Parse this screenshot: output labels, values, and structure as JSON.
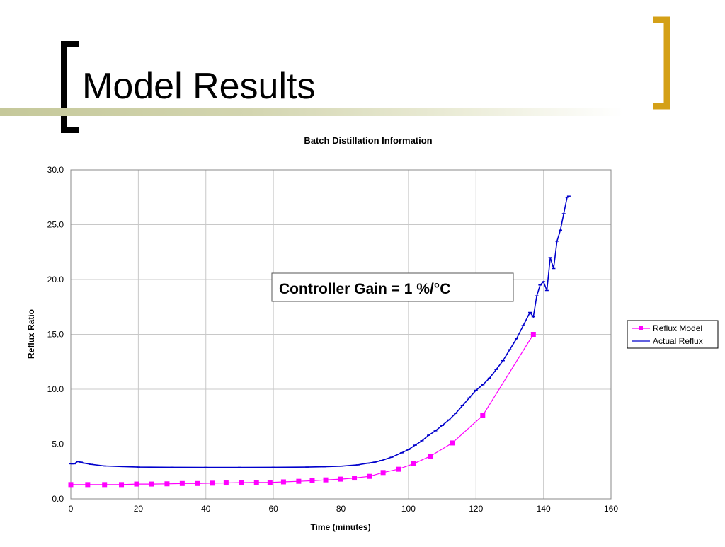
{
  "slide": {
    "title": "Model Results",
    "colors": {
      "bracket_left": "#000000",
      "bracket_right": "#d4a017",
      "rule": "#c5c89a"
    }
  },
  "chart_data": {
    "type": "line",
    "title": "Batch Distillation Information",
    "xlabel": "Time (minutes)",
    "ylabel": "Reflux Ratio",
    "xlim": [
      0,
      160
    ],
    "ylim": [
      0,
      30
    ],
    "xticks": [
      0,
      20,
      40,
      60,
      80,
      100,
      120,
      140,
      160
    ],
    "yticks": [
      0,
      5,
      10,
      15,
      20,
      25,
      30
    ],
    "ytick_labels": [
      "0.0",
      "5.0",
      "10.0",
      "15.0",
      "20.0",
      "25.0",
      "30.0"
    ],
    "grid": true,
    "legend_position": "right",
    "annotation": "Controller Gain = 1 %/°C",
    "series": [
      {
        "name": "Reflux Model",
        "color": "#ff00ff",
        "marker": "square",
        "x": [
          0,
          5,
          10,
          15,
          19.5,
          24,
          28.5,
          33,
          37.5,
          42,
          46,
          50.5,
          55,
          59,
          63,
          67.5,
          71.5,
          75.5,
          80,
          84,
          88.5,
          92.5,
          97,
          101.5,
          106.5,
          113,
          122,
          137
        ],
        "y": [
          1.3,
          1.3,
          1.3,
          1.3,
          1.35,
          1.35,
          1.37,
          1.4,
          1.4,
          1.43,
          1.45,
          1.48,
          1.5,
          1.5,
          1.55,
          1.6,
          1.65,
          1.73,
          1.8,
          1.9,
          2.05,
          2.4,
          2.7,
          3.2,
          3.9,
          5.1,
          7.6,
          15.0
        ]
      },
      {
        "name": "Actual Reflux",
        "color": "#0000cc",
        "marker": "dash",
        "x": [
          0,
          1,
          2,
          3,
          4,
          6,
          10,
          15,
          20,
          30,
          40,
          50,
          60,
          70,
          75,
          80,
          85,
          88,
          90,
          92,
          95,
          98,
          100,
          102,
          104,
          106,
          108,
          110,
          112,
          114,
          116,
          118,
          120,
          122,
          124,
          126,
          128,
          130,
          132,
          134,
          136,
          137,
          138,
          139,
          140,
          141,
          142,
          143,
          144,
          145,
          146,
          147,
          147.5
        ],
        "y": [
          3.2,
          3.2,
          3.4,
          3.35,
          3.25,
          3.15,
          3.0,
          2.95,
          2.9,
          2.88,
          2.87,
          2.87,
          2.88,
          2.9,
          2.93,
          2.98,
          3.1,
          3.25,
          3.35,
          3.5,
          3.8,
          4.2,
          4.5,
          4.9,
          5.3,
          5.8,
          6.2,
          6.7,
          7.2,
          7.8,
          8.5,
          9.2,
          9.9,
          10.4,
          11.0,
          11.8,
          12.6,
          13.6,
          14.6,
          15.8,
          17.0,
          16.6,
          18.5,
          19.5,
          19.8,
          19.0,
          22.0,
          21.0,
          23.5,
          24.5,
          26.0,
          27.5,
          27.6
        ]
      }
    ]
  }
}
